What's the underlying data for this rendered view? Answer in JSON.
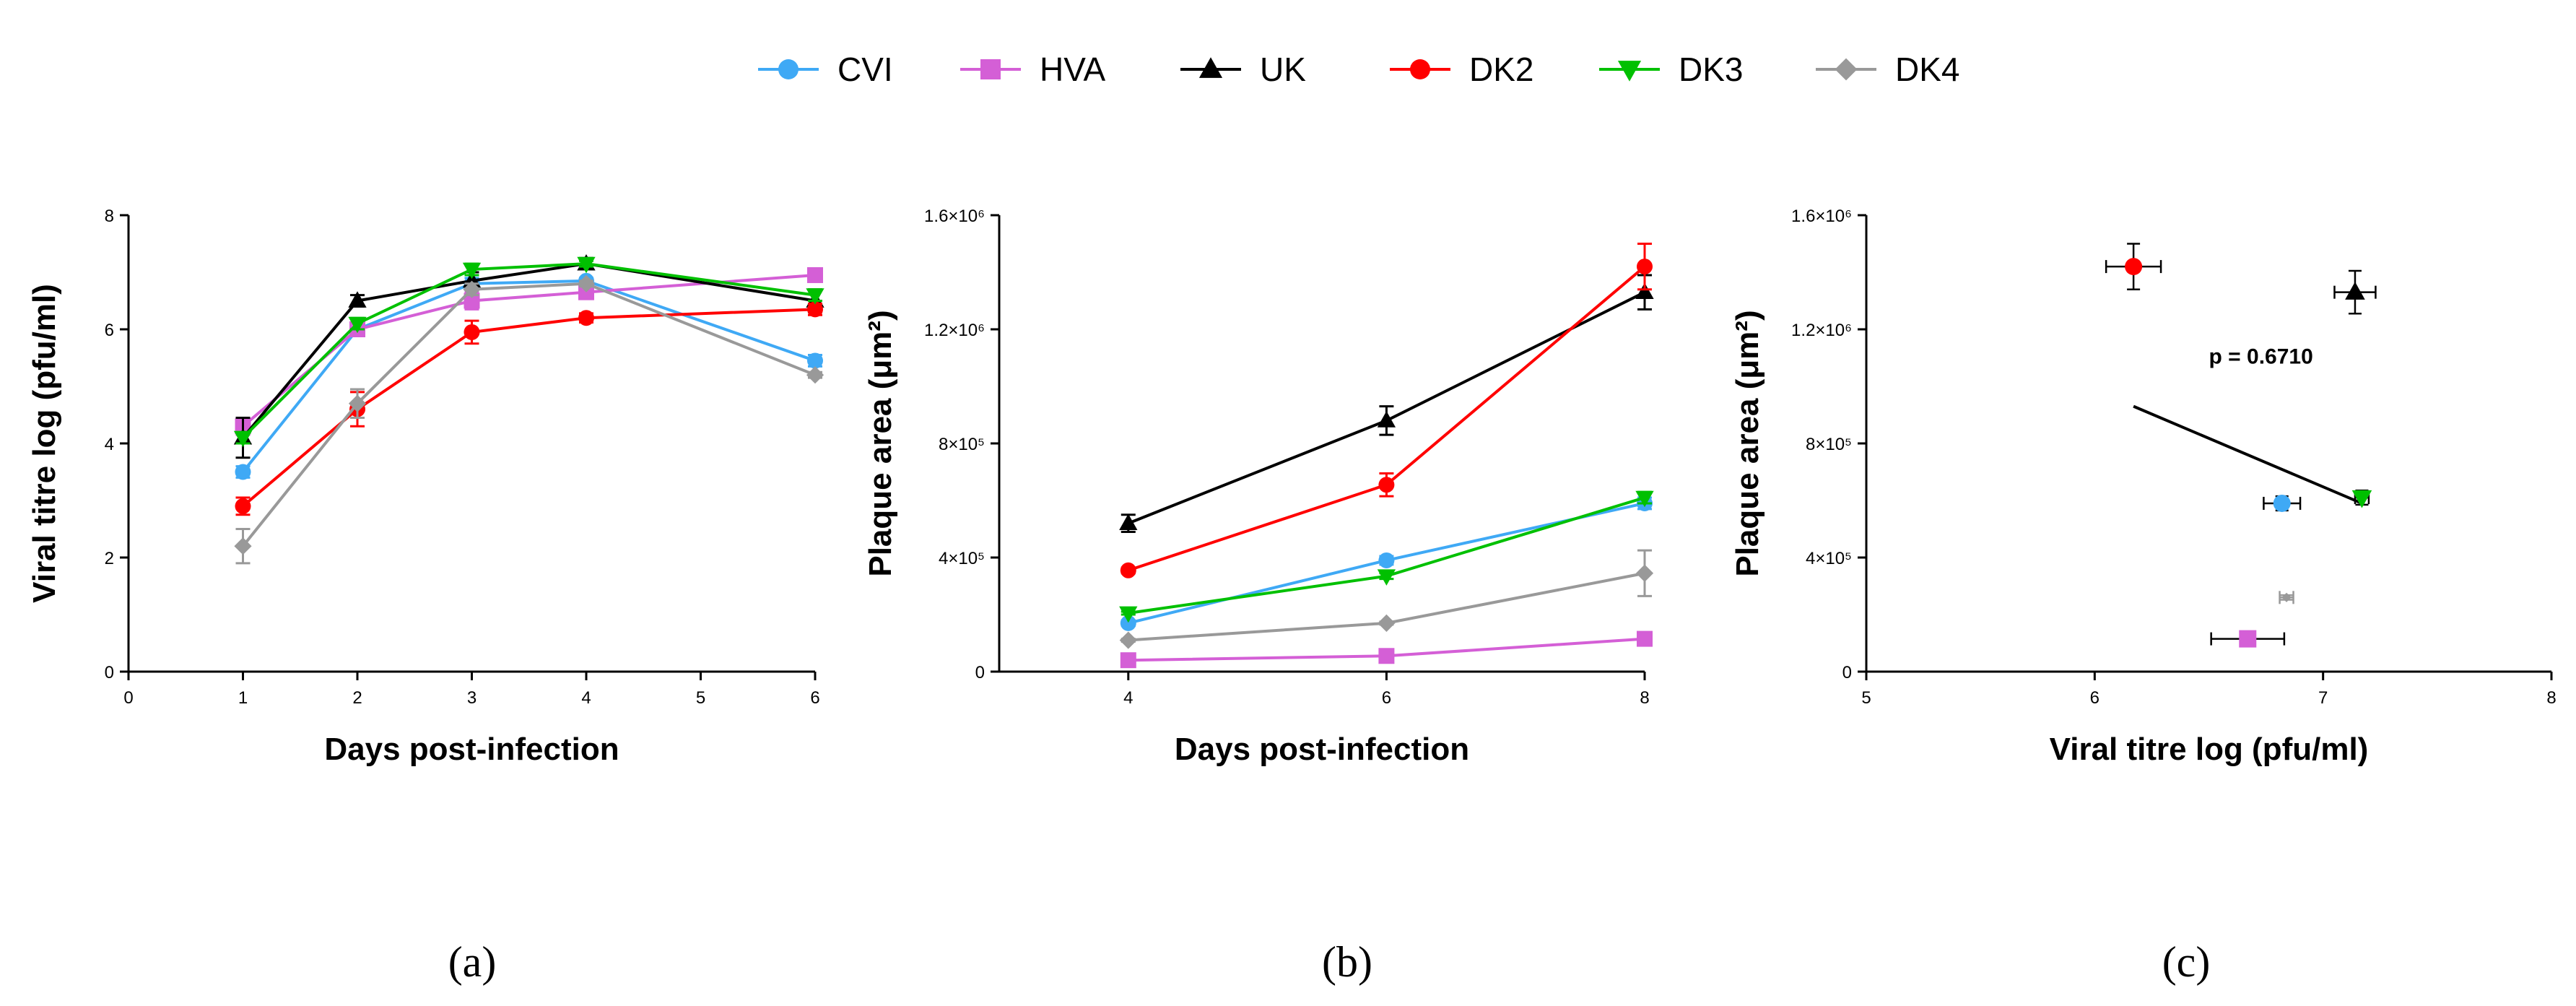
{
  "legend": [
    {
      "name": "CVI",
      "color": "#3fa9f5",
      "marker": "circle"
    },
    {
      "name": "HVA",
      "color": "#d45fd6",
      "marker": "square"
    },
    {
      "name": "UK",
      "color": "#000000",
      "marker": "triangle-up"
    },
    {
      "name": "DK2",
      "color": "#ff0000",
      "marker": "circle"
    },
    {
      "name": "DK3",
      "color": "#00c000",
      "marker": "triangle-down"
    },
    {
      "name": "DK4",
      "color": "#999999",
      "marker": "diamond"
    }
  ],
  "chart_data": [
    {
      "type": "line",
      "panel_label": "(a)",
      "xlabel": "Days post-infection",
      "ylabel": "Viral titre log (pfu/ml)",
      "xlim": [
        0,
        6
      ],
      "ylim": [
        0,
        8
      ],
      "xticks": [
        "0",
        "1",
        "2",
        "3",
        "4",
        "5",
        "6"
      ],
      "yticks": [
        "0",
        "2",
        "4",
        "6",
        "8"
      ],
      "x": [
        1,
        2,
        3,
        4,
        6
      ],
      "series": [
        {
          "name": "CVI",
          "values": [
            3.5,
            6.0,
            6.8,
            6.85,
            5.45
          ],
          "err": [
            0.1,
            0.1,
            0.1,
            0.05,
            0.1
          ]
        },
        {
          "name": "HVA",
          "values": [
            4.3,
            6.0,
            6.5,
            6.65,
            6.95
          ],
          "err": [
            0.15,
            0.1,
            0.15,
            0.1,
            0.1
          ]
        },
        {
          "name": "UK",
          "values": [
            4.1,
            6.5,
            6.85,
            7.15,
            6.5
          ],
          "err": [
            0.35,
            0.1,
            0.15,
            0.1,
            0.2
          ]
        },
        {
          "name": "DK2",
          "values": [
            2.9,
            4.6,
            5.95,
            6.2,
            6.35
          ],
          "err": [
            0.15,
            0.3,
            0.2,
            0.08,
            0.1
          ]
        },
        {
          "name": "DK3",
          "values": [
            4.1,
            6.1,
            7.05,
            7.15,
            6.6
          ],
          "err": [
            0.1,
            0.1,
            0.1,
            0.05,
            0.1
          ]
        },
        {
          "name": "DK4",
          "values": [
            2.2,
            4.7,
            6.7,
            6.8,
            5.2
          ],
          "err": [
            0.3,
            0.25,
            0.1,
            0.05,
            0.05
          ]
        }
      ]
    },
    {
      "type": "line",
      "panel_label": "(b)",
      "xlabel": "Days post-infection",
      "ylabel": "Plaque area (μm²)",
      "xlim": [
        3,
        8
      ],
      "ylim": [
        0,
        1600000
      ],
      "xticks": [
        "4",
        "6",
        "8"
      ],
      "yticks": [
        "0",
        "4×10⁵",
        "8×10⁵",
        "1.2×10⁶",
        "1.6×10⁶"
      ],
      "x": [
        4,
        6,
        8
      ],
      "series": [
        {
          "name": "CVI",
          "values": [
            170000,
            390000,
            590000
          ],
          "err": [
            10000,
            15000,
            20000
          ]
        },
        {
          "name": "HVA",
          "values": [
            40000,
            55000,
            115000
          ],
          "err": [
            5000,
            5000,
            10000
          ]
        },
        {
          "name": "UK",
          "values": [
            520000,
            880000,
            1330000
          ],
          "err": [
            30000,
            50000,
            60000
          ]
        },
        {
          "name": "DK2",
          "values": [
            355000,
            655000,
            1420000
          ],
          "err": [
            10000,
            40000,
            80000
          ]
        },
        {
          "name": "DK3",
          "values": [
            205000,
            335000,
            610000
          ],
          "err": [
            5000,
            10000,
            20000
          ]
        },
        {
          "name": "DK4",
          "values": [
            110000,
            170000,
            345000
          ],
          "err": [
            5000,
            5000,
            80000
          ]
        }
      ]
    },
    {
      "type": "scatter",
      "panel_label": "(c)",
      "xlabel": "Viral titre log (pfu/ml)",
      "ylabel": "Plaque area (μm²)",
      "xlim": [
        5,
        8
      ],
      "ylim": [
        0,
        1600000
      ],
      "xticks": [
        "5",
        "6",
        "7",
        "8"
      ],
      "yticks": [
        "0",
        "4×10⁵",
        "8×10⁵",
        "1.2×10⁶",
        "1.6×10⁶"
      ],
      "annotation": "p = 0.6710",
      "regression": {
        "x": [
          6.17,
          7.17
        ],
        "y": [
          930000,
          590000
        ]
      },
      "points": [
        {
          "name": "CVI",
          "x": 6.82,
          "y": 590000,
          "xerr": 0.08,
          "yerr": 25000
        },
        {
          "name": "HVA",
          "x": 6.67,
          "y": 115000,
          "xerr": 0.16,
          "yerr": 8000
        },
        {
          "name": "UK",
          "x": 7.14,
          "y": 1330000,
          "xerr": 0.09,
          "yerr": 75000
        },
        {
          "name": "DK2",
          "x": 6.17,
          "y": 1420000,
          "xerr": 0.12,
          "yerr": 80000
        },
        {
          "name": "DK3",
          "x": 7.17,
          "y": 610000,
          "xerr": 0.03,
          "yerr": 25000
        },
        {
          "name": "DK4",
          "x": 6.84,
          "y": 260000,
          "xerr": 0.03,
          "yerr": 8000
        }
      ]
    }
  ]
}
